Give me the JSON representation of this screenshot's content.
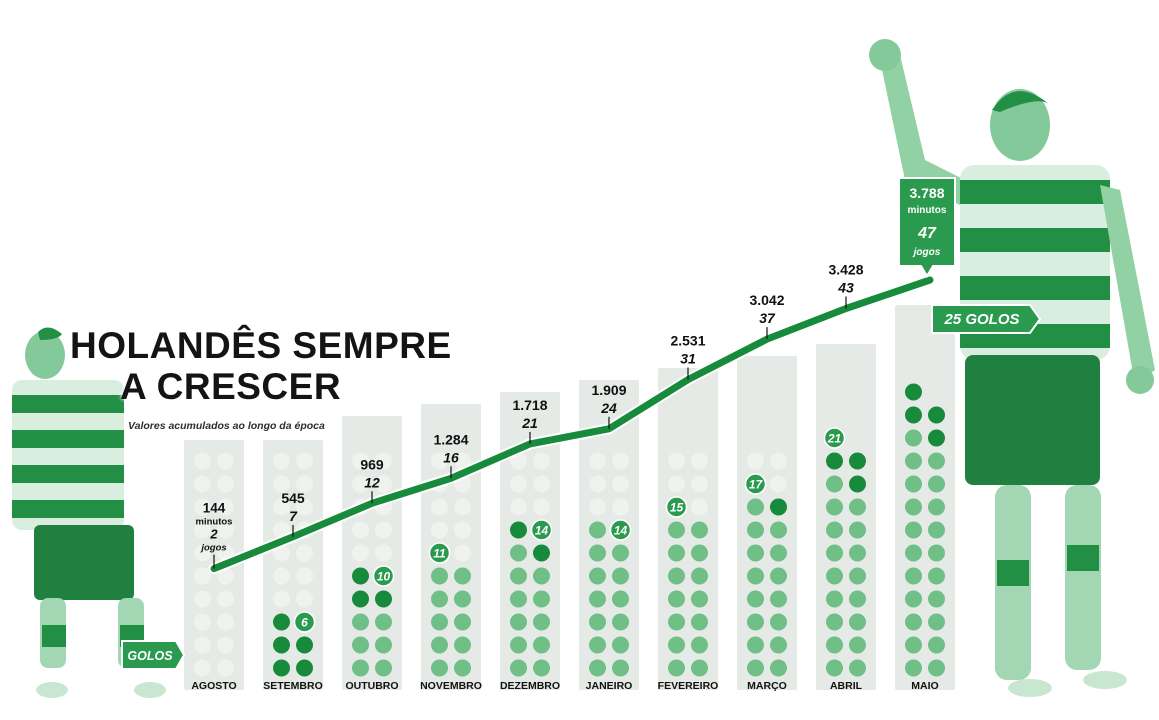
{
  "title_line1": "HOLANDÊS SEMPRE",
  "title_line2": "A CRESCER",
  "subtitle": "Valores acumulados ao longo da época",
  "minutes_unit_label": "minutos",
  "games_unit_label": "jogos",
  "goals_legend_label": "GOLOS",
  "total_goals_label": "25 GOLOS",
  "colors": {
    "dark_green": "#178a3c",
    "medium_green": "#6fbf87",
    "light_dot": "#f0f2f0",
    "column_bg": "#e6eae6",
    "text_dark": "#141414"
  },
  "chart_data": {
    "type": "line",
    "title": "HOLANDÊS SEMPRE A CRESCER",
    "subtitle": "Valores acumulados ao longo da época",
    "categories": [
      "AGOSTO",
      "SETEMBRO",
      "OUTUBRO",
      "NOVEMBRO",
      "DEZEMBRO",
      "JANEIRO",
      "FEVEREIRO",
      "MARÇO",
      "ABRIL",
      "MAIO"
    ],
    "series": [
      {
        "name": "minutos",
        "values": [
          144,
          545,
          969,
          1284,
          1718,
          1909,
          2531,
          3042,
          3428,
          3788
        ],
        "labels": [
          "144",
          "545",
          "969",
          "1.284",
          "1.718",
          "1.909",
          "2.531",
          "3.042",
          "3.428",
          "3.788"
        ]
      },
      {
        "name": "jogos",
        "values": [
          2,
          7,
          12,
          16,
          21,
          24,
          31,
          37,
          43,
          47
        ]
      },
      {
        "name": "GOLOS",
        "values": [
          0,
          6,
          10,
          11,
          14,
          14,
          15,
          17,
          21,
          25
        ]
      }
    ],
    "goal_labels": [
      "",
      "6",
      "10",
      "11",
      "14",
      "14",
      "15",
      "17",
      "21",
      "25 GOLOS"
    ],
    "dot_grid_rows": 10,
    "dot_grid_cols": 2,
    "ylim_minutes": [
      0,
      3788
    ]
  }
}
